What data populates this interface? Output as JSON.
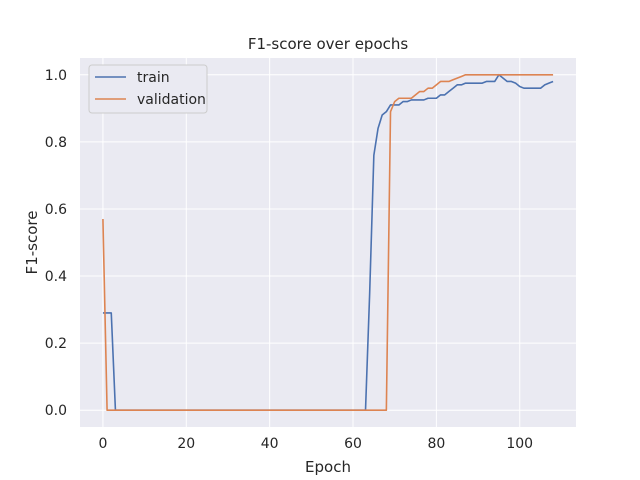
{
  "chart_data": {
    "type": "line",
    "title": "F1-score over epochs",
    "xlabel": "Epoch",
    "ylabel": "F1-score",
    "xlim": [
      -5.5,
      113.5
    ],
    "ylim": [
      -0.05,
      1.05
    ],
    "xticks": [
      0,
      20,
      40,
      60,
      80,
      100
    ],
    "yticks": [
      0.0,
      0.2,
      0.4,
      0.6,
      0.8,
      1.0
    ],
    "xtick_labels": [
      "0",
      "20",
      "40",
      "60",
      "80",
      "100"
    ],
    "ytick_labels": [
      "0.0",
      "0.2",
      "0.4",
      "0.6",
      "0.8",
      "1.0"
    ],
    "grid": true,
    "legend": "top-left",
    "series": [
      {
        "name": "train",
        "color": "#4c72b0",
        "x": [
          0,
          1,
          2,
          3,
          10,
          20,
          30,
          40,
          50,
          60,
          62,
          63,
          64,
          65,
          66,
          67,
          68,
          69,
          70,
          71,
          72,
          73,
          74,
          75,
          76,
          77,
          78,
          79,
          80,
          81,
          82,
          83,
          84,
          85,
          86,
          87,
          88,
          89,
          90,
          91,
          92,
          93,
          94,
          95,
          96,
          97,
          98,
          99,
          100,
          101,
          102,
          103,
          104,
          105,
          106,
          107,
          108
        ],
        "y": [
          0.29,
          0.29,
          0.29,
          0.0,
          0.0,
          0.0,
          0.0,
          0.0,
          0.0,
          0.0,
          0.0,
          0.0,
          0.35,
          0.76,
          0.84,
          0.88,
          0.89,
          0.91,
          0.91,
          0.91,
          0.92,
          0.92,
          0.925,
          0.925,
          0.925,
          0.925,
          0.93,
          0.93,
          0.93,
          0.94,
          0.94,
          0.95,
          0.96,
          0.97,
          0.97,
          0.975,
          0.975,
          0.975,
          0.975,
          0.975,
          0.98,
          0.98,
          0.98,
          1.0,
          0.99,
          0.98,
          0.98,
          0.975,
          0.965,
          0.96,
          0.96,
          0.96,
          0.96,
          0.96,
          0.97,
          0.975,
          0.98
        ]
      },
      {
        "name": "validation",
        "color": "#dd8452",
        "x": [
          0,
          1,
          2,
          10,
          20,
          30,
          40,
          50,
          60,
          65,
          67,
          68,
          69,
          70,
          71,
          72,
          73,
          74,
          75,
          76,
          77,
          78,
          79,
          80,
          81,
          82,
          83,
          84,
          85,
          86,
          87,
          88,
          89,
          90,
          91,
          92,
          93,
          94,
          95,
          96,
          97,
          98,
          99,
          100,
          101,
          102,
          103,
          104,
          105,
          106,
          107,
          108
        ],
        "y": [
          0.57,
          0.0,
          0.0,
          0.0,
          0.0,
          0.0,
          0.0,
          0.0,
          0.0,
          0.0,
          0.0,
          0.0,
          0.89,
          0.92,
          0.93,
          0.93,
          0.93,
          0.93,
          0.94,
          0.95,
          0.95,
          0.96,
          0.96,
          0.97,
          0.98,
          0.98,
          0.98,
          0.985,
          0.99,
          0.995,
          1.0,
          1.0,
          1.0,
          1.0,
          1.0,
          1.0,
          1.0,
          1.0,
          1.0,
          1.0,
          1.0,
          1.0,
          1.0,
          1.0,
          1.0,
          1.0,
          1.0,
          1.0,
          1.0,
          1.0,
          1.0,
          1.0
        ]
      }
    ]
  }
}
